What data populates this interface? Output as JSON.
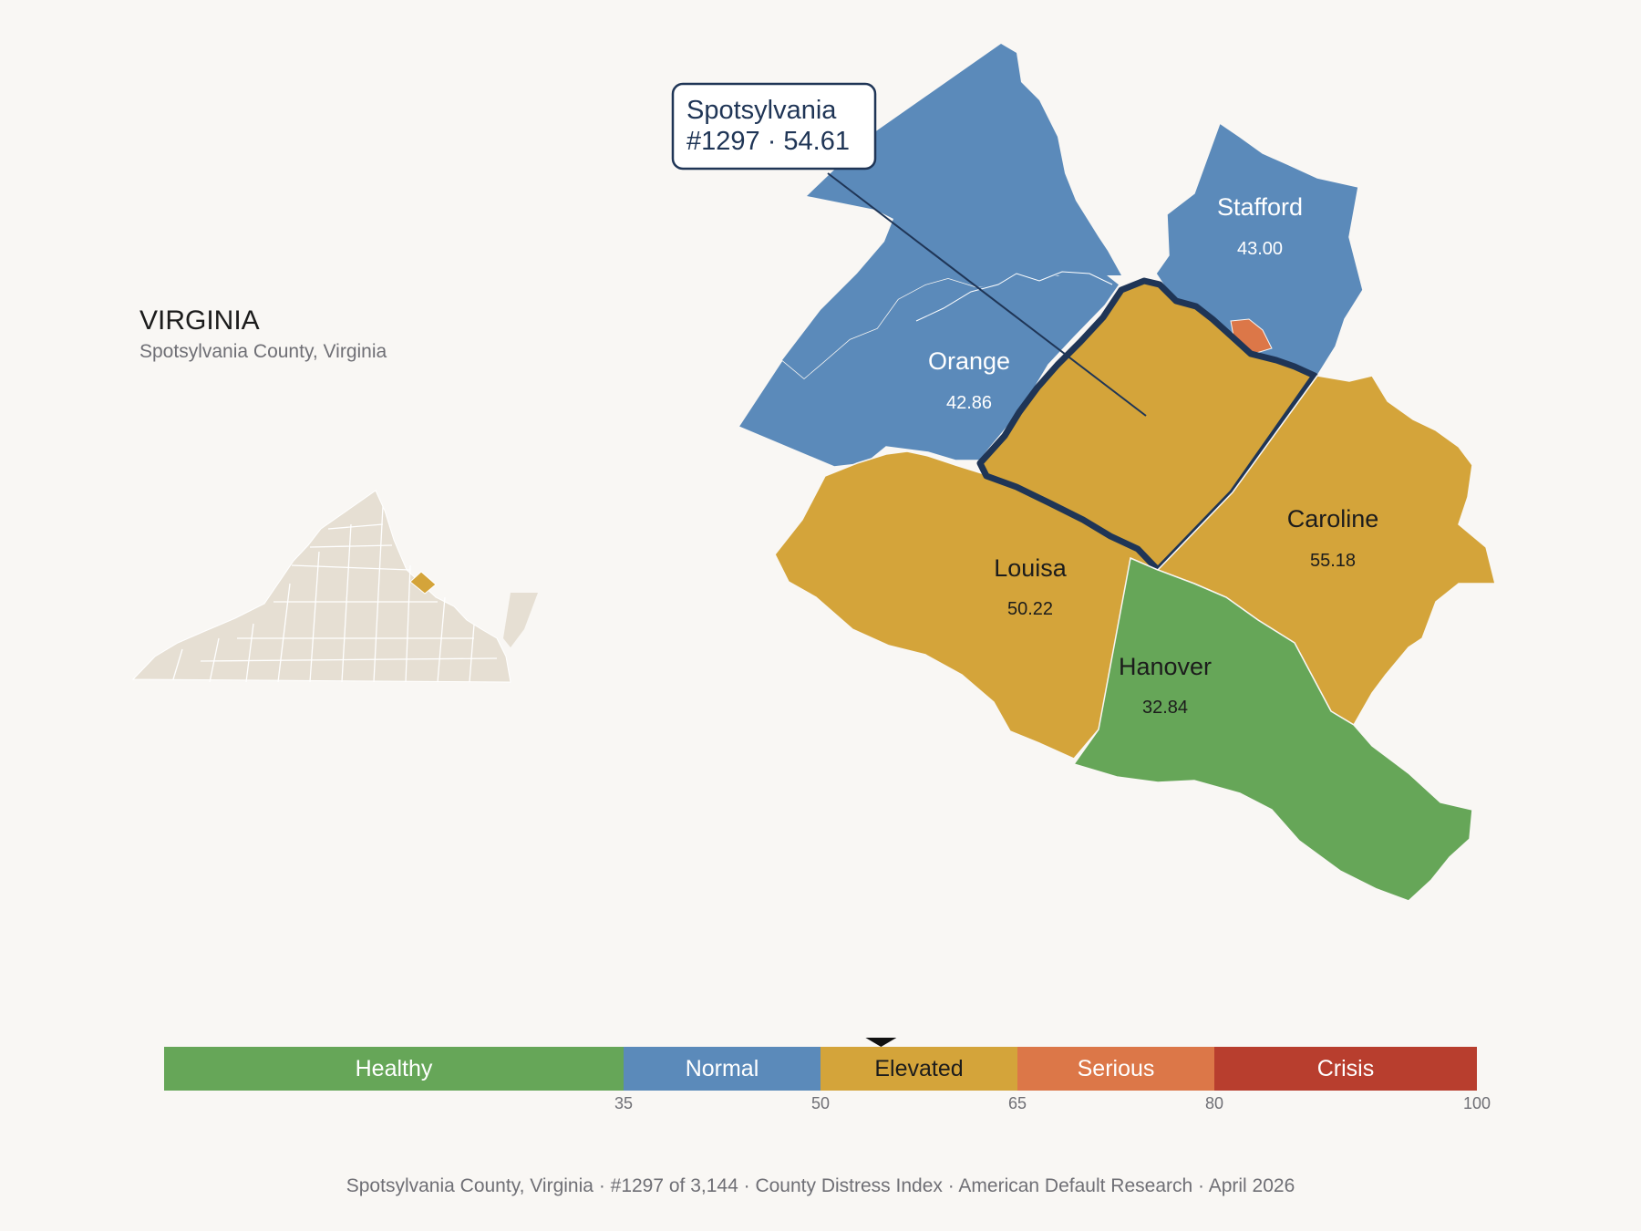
{
  "state": {
    "name": "VIRGINIA",
    "subtitle": "Spotsylvania County, Virginia"
  },
  "callout": {
    "county": "Spotsylvania",
    "rank_value": "#1297 · 54.61"
  },
  "counties": [
    {
      "id": "orange",
      "name": "Orange",
      "score": "42.86",
      "tier": "Normal"
    },
    {
      "id": "stafford",
      "name": "Stafford",
      "score": "43.00",
      "tier": "Normal"
    },
    {
      "id": "louisa",
      "name": "Louisa",
      "score": "50.22",
      "tier": "Elevated"
    },
    {
      "id": "caroline",
      "name": "Caroline",
      "score": "55.18",
      "tier": "Elevated"
    },
    {
      "id": "hanover",
      "name": "Hanover",
      "score": "32.84",
      "tier": "Healthy"
    },
    {
      "id": "spotsylvania",
      "name": "Spotsylvania",
      "score": "54.61",
      "tier": "Elevated",
      "highlighted": true
    },
    {
      "id": "fredericksburg",
      "name": "",
      "score": "",
      "tier": "Serious"
    }
  ],
  "scale": {
    "selected_value": 54.61,
    "min": 0,
    "max": 100,
    "bands": [
      {
        "label": "Healthy",
        "from": 0,
        "to": 35,
        "color": "#66a658"
      },
      {
        "label": "Normal",
        "from": 35,
        "to": 50,
        "color": "#5b8aba"
      },
      {
        "label": "Elevated",
        "from": 50,
        "to": 65,
        "color": "#d4a43a"
      },
      {
        "label": "Serious",
        "from": 65,
        "to": 80,
        "color": "#dc7748"
      },
      {
        "label": "Crisis",
        "from": 80,
        "to": 100,
        "color": "#b83e2e"
      }
    ],
    "ticks": [
      "35",
      "50",
      "65",
      "80",
      "100"
    ]
  },
  "colors": {
    "background": "#f9f7f4",
    "highlight_outline": "#1f3556",
    "inset_fill": "#e6dfd3"
  },
  "footer": {
    "location": "Spotsylvania County, Virginia",
    "rank": "#1297 of 3,144",
    "index": "County Distress Index",
    "source": "American Default Research",
    "date": "April 2026"
  }
}
